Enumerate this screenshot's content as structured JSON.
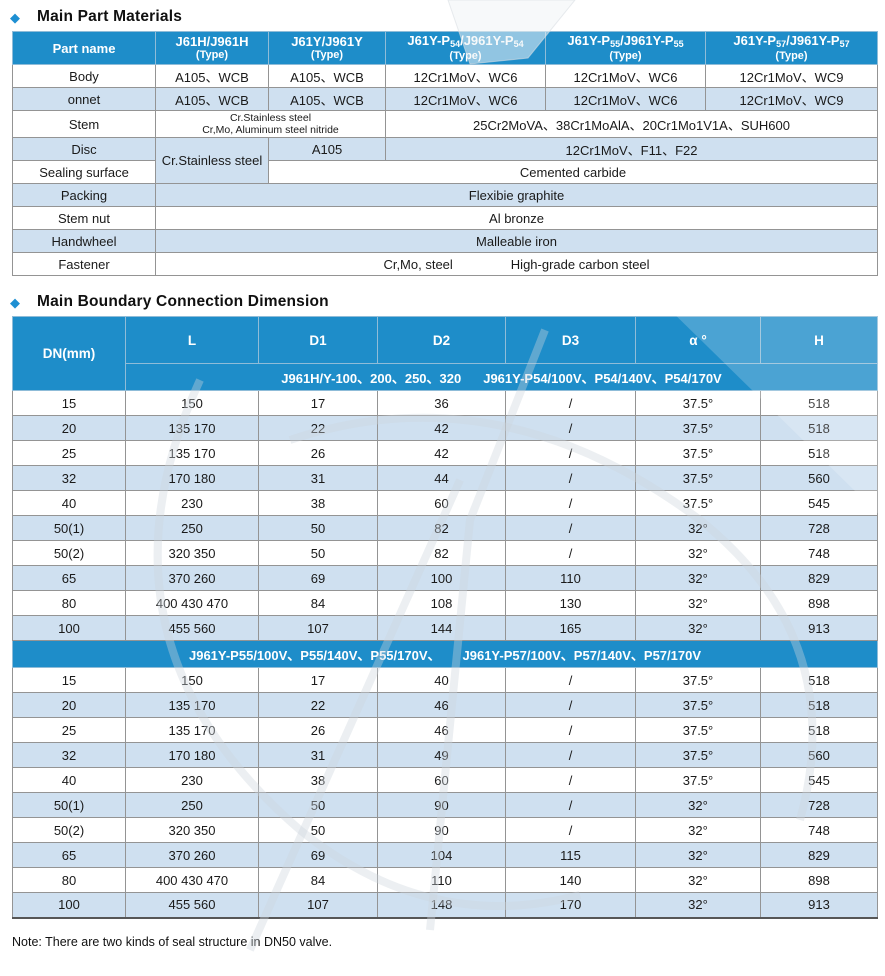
{
  "sections": {
    "materials_title": "Main Part Materials",
    "dimensions_title": "Main Boundary Connection Dimension",
    "note": "Note: There are two kinds of seal structure in DN50 valve.",
    "bullet_glyph": "◆"
  },
  "colors": {
    "header_blue": "#1e8dc9",
    "alt_row_blue": "#cfe0f0",
    "bullet_blue": "#1e8fd2"
  },
  "materials_table": {
    "part_name_header": "Part name",
    "columns": [
      {
        "p1": "J61H/J961H",
        "type": "(Type)"
      },
      {
        "p1": "J61Y/J961Y",
        "type": "(Type)"
      },
      {
        "p1": "J61Y-P",
        "s1": "54",
        "p2": "/J961Y-P",
        "s2": "54",
        "type": "(Type)"
      },
      {
        "p1": "J61Y-P",
        "s1": "55",
        "p2": "/J961Y-P",
        "s2": "55",
        "type": "(Type)"
      },
      {
        "p1": "J61Y-P",
        "s1": "57",
        "p2": "/J961Y-P",
        "s2": "57",
        "type": "(Type)"
      }
    ],
    "body": {
      "label": "Body",
      "c1": "A105、WCB",
      "c2": "A105、WCB",
      "c3": "12Cr1MoV、WC6",
      "c4": "12Cr1MoV、WC6",
      "c5": "12Cr1MoV、WC9"
    },
    "bonnet": {
      "label": "onnet",
      "c1": "A105、WCB",
      "c2": "A105、WCB",
      "c3": "12Cr1MoV、WC6",
      "c4": "12Cr1MoV、WC6",
      "c5": "12Cr1MoV、WC9"
    },
    "stem": {
      "label": "Stem",
      "left_line1": "Cr.Stainless steel",
      "left_line2": "Cr,Mo, Aluminum steel nitride",
      "right": "25Cr2MoVA、38Cr1MoAlA、20Cr1Mo1V1A、SUH600"
    },
    "disc": {
      "label": "Disc",
      "merged": "Cr.Stainless steel",
      "c2": "A105",
      "right": "12Cr1MoV、F11、F22"
    },
    "sealing_surface": {
      "label": "Sealing surface",
      "value": "Cemented carbide"
    },
    "packing": {
      "label": "Packing",
      "value": "Flexibie graphite"
    },
    "stem_nut": {
      "label": "Stem nut",
      "value": "Al bronze"
    },
    "handwheel": {
      "label": "Handwheel",
      "value": "Malleable iron"
    },
    "fastener": {
      "label": "Fastener",
      "value1": "Cr,Mo, steel",
      "value2": "High-grade carbon steel"
    }
  },
  "dimension_table": {
    "column_headers": [
      "DN(mm)",
      "L",
      "D1",
      "D2",
      "D3",
      "α °",
      "H"
    ],
    "sections": [
      {
        "subheader_part1": "J961H/Y-100、200、250、320",
        "subheader_part2": "J961Y-P54/100V、P54/140V、P54/170V",
        "rows": [
          [
            "15",
            "150",
            "17",
            "36",
            "/",
            "37.5°",
            "518"
          ],
          [
            "20",
            "135 170",
            "22",
            "42",
            "/",
            "37.5°",
            "518"
          ],
          [
            "25",
            "135 170",
            "26",
            "42",
            "/",
            "37.5°",
            "518"
          ],
          [
            "32",
            "170 180",
            "31",
            "44",
            "/",
            "37.5°",
            "560"
          ],
          [
            "40",
            "230",
            "38",
            "60",
            "/",
            "37.5°",
            "545"
          ],
          [
            "50(1)",
            "250",
            "50",
            "82",
            "/",
            "32°",
            "728"
          ],
          [
            "50(2)",
            "320 350",
            "50",
            "82",
            "/",
            "32°",
            "748"
          ],
          [
            "65",
            "370 260",
            "69",
            "100",
            "110",
            "32°",
            "829"
          ],
          [
            "80",
            "400 430 470",
            "84",
            "108",
            "130",
            "32°",
            "898"
          ],
          [
            "100",
            "455 560",
            "107",
            "144",
            "165",
            "32°",
            "913"
          ]
        ]
      },
      {
        "subheader_part1": "J961Y-P55/100V、P55/140V、P55/170V、",
        "subheader_part2": "J961Y-P57/100V、P57/140V、P57/170V",
        "rows": [
          [
            "15",
            "150",
            "17",
            "40",
            "/",
            "37.5°",
            "518"
          ],
          [
            "20",
            "135 170",
            "22",
            "46",
            "/",
            "37.5°",
            "518"
          ],
          [
            "25",
            "135 170",
            "26",
            "46",
            "/",
            "37.5°",
            "518"
          ],
          [
            "32",
            "170 180",
            "31",
            "49",
            "/",
            "37.5°",
            "560"
          ],
          [
            "40",
            "230",
            "38",
            "60",
            "/",
            "37.5°",
            "545"
          ],
          [
            "50(1)",
            "250",
            "50",
            "90",
            "/",
            "32°",
            "728"
          ],
          [
            "50(2)",
            "320 350",
            "50",
            "90",
            "/",
            "32°",
            "748"
          ],
          [
            "65",
            "370 260",
            "69",
            "104",
            "115",
            "32°",
            "829"
          ],
          [
            "80",
            "400 430 470",
            "84",
            "110",
            "140",
            "32°",
            "898"
          ],
          [
            "100",
            "455 560",
            "107",
            "148",
            "170",
            "32°",
            "913"
          ]
        ]
      }
    ]
  }
}
